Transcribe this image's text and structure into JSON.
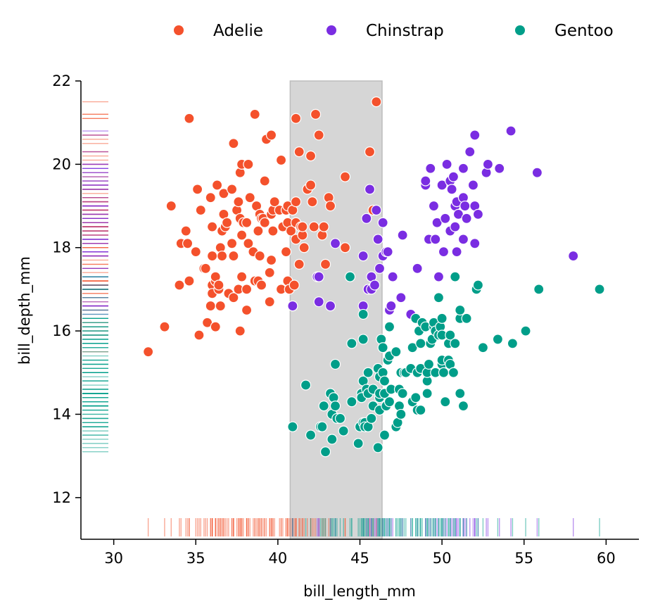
{
  "chart_data": {
    "type": "scatter",
    "title": "",
    "xlabel": "bill_length_mm",
    "ylabel": "bill_depth_mm",
    "xlim": [
      28,
      62
    ],
    "ylim": [
      11,
      22
    ],
    "x_ticks": [
      30,
      35,
      40,
      45,
      50,
      55,
      60
    ],
    "y_ticks": [
      12,
      14,
      16,
      18,
      20,
      22
    ],
    "grid": false,
    "legend_placement": "top, outside",
    "highlight_span": {
      "x": [
        40.75,
        46.35
      ],
      "color": "#d6d6d6"
    },
    "marginal_rugs": true,
    "series": [
      {
        "name": "Adelie",
        "color": "#f4512c",
        "points": [
          [
            32.1,
            15.5
          ],
          [
            33.1,
            16.1
          ],
          [
            33.5,
            19.0
          ],
          [
            34.0,
            17.1
          ],
          [
            34.1,
            18.1
          ],
          [
            34.4,
            18.4
          ],
          [
            34.5,
            18.1
          ],
          [
            34.6,
            21.1
          ],
          [
            34.6,
            17.2
          ],
          [
            35.0,
            17.9
          ],
          [
            35.1,
            19.4
          ],
          [
            35.2,
            15.9
          ],
          [
            35.3,
            18.9
          ],
          [
            35.5,
            17.5
          ],
          [
            35.6,
            17.5
          ],
          [
            35.7,
            16.2
          ],
          [
            35.9,
            16.6
          ],
          [
            35.9,
            19.2
          ],
          [
            36.0,
            17.8
          ],
          [
            36.0,
            18.5
          ],
          [
            36.0,
            17.1
          ],
          [
            36.0,
            16.9
          ],
          [
            36.2,
            16.1
          ],
          [
            36.2,
            17.2
          ],
          [
            36.2,
            17.3
          ],
          [
            36.3,
            19.5
          ],
          [
            36.4,
            17.0
          ],
          [
            36.4,
            17.1
          ],
          [
            36.5,
            16.6
          ],
          [
            36.5,
            18.0
          ],
          [
            36.6,
            17.8
          ],
          [
            36.6,
            18.4
          ],
          [
            36.7,
            19.3
          ],
          [
            36.7,
            18.8
          ],
          [
            36.8,
            18.5
          ],
          [
            36.9,
            18.6
          ],
          [
            37.0,
            16.9
          ],
          [
            37.2,
            18.1
          ],
          [
            37.2,
            19.4
          ],
          [
            37.3,
            17.8
          ],
          [
            37.3,
            20.5
          ],
          [
            37.3,
            16.8
          ],
          [
            37.5,
            18.9
          ],
          [
            37.6,
            19.1
          ],
          [
            37.6,
            17.0
          ],
          [
            37.7,
            18.7
          ],
          [
            37.7,
            19.8
          ],
          [
            37.7,
            16.0
          ],
          [
            37.8,
            17.3
          ],
          [
            37.8,
            18.3
          ],
          [
            37.8,
            20.0
          ],
          [
            37.9,
            18.6
          ],
          [
            38.1,
            18.6
          ],
          [
            38.1,
            16.5
          ],
          [
            38.1,
            17.0
          ],
          [
            38.2,
            18.1
          ],
          [
            38.2,
            20.0
          ],
          [
            38.3,
            19.2
          ],
          [
            38.5,
            17.9
          ],
          [
            38.6,
            17.2
          ],
          [
            38.6,
            21.2
          ],
          [
            38.7,
            19.0
          ],
          [
            38.8,
            17.2
          ],
          [
            38.8,
            18.4
          ],
          [
            38.9,
            17.8
          ],
          [
            38.9,
            18.8
          ],
          [
            39.0,
            17.1
          ],
          [
            39.0,
            18.7
          ],
          [
            39.1,
            18.7
          ],
          [
            39.2,
            19.6
          ],
          [
            39.2,
            18.6
          ],
          [
            39.3,
            20.6
          ],
          [
            39.5,
            17.4
          ],
          [
            39.5,
            16.7
          ],
          [
            39.6,
            17.7
          ],
          [
            39.6,
            18.8
          ],
          [
            39.6,
            20.7
          ],
          [
            39.7,
            18.4
          ],
          [
            39.7,
            18.9
          ],
          [
            39.8,
            19.1
          ],
          [
            40.1,
            18.9
          ],
          [
            40.2,
            17.0
          ],
          [
            40.2,
            20.1
          ],
          [
            40.3,
            18.5
          ],
          [
            40.5,
            17.9
          ],
          [
            40.5,
            18.9
          ],
          [
            40.6,
            17.2
          ],
          [
            40.6,
            18.6
          ],
          [
            40.6,
            19.0
          ],
          [
            40.7,
            17.0
          ],
          [
            40.8,
            18.4
          ],
          [
            40.9,
            16.6
          ],
          [
            40.9,
            18.9
          ],
          [
            41.0,
            17.1
          ],
          [
            41.1,
            18.2
          ],
          [
            41.1,
            19.1
          ],
          [
            41.1,
            18.6
          ],
          [
            41.1,
            21.1
          ],
          [
            41.3,
            20.3
          ],
          [
            41.3,
            17.6
          ],
          [
            41.4,
            18.5
          ],
          [
            41.5,
            18.3
          ],
          [
            41.5,
            18.5
          ],
          [
            41.6,
            18.0
          ],
          [
            41.8,
            19.4
          ],
          [
            42.0,
            20.2
          ],
          [
            42.0,
            19.5
          ],
          [
            42.1,
            19.1
          ],
          [
            42.2,
            18.5
          ],
          [
            42.3,
            21.2
          ],
          [
            42.5,
            20.7
          ],
          [
            42.7,
            18.3
          ],
          [
            42.8,
            18.5
          ],
          [
            42.9,
            17.6
          ],
          [
            43.1,
            19.2
          ],
          [
            43.2,
            19.0
          ],
          [
            44.1,
            19.7
          ],
          [
            44.1,
            18.0
          ],
          [
            45.6,
            20.3
          ],
          [
            45.8,
            18.9
          ],
          [
            46.0,
            21.5
          ]
        ]
      },
      {
        "name": "Chinstrap",
        "color": "#7a2de2",
        "points": [
          [
            40.9,
            16.6
          ],
          [
            42.4,
            17.3
          ],
          [
            42.5,
            17.3
          ],
          [
            42.5,
            16.7
          ],
          [
            43.2,
            16.6
          ],
          [
            43.5,
            18.1
          ],
          [
            45.2,
            16.6
          ],
          [
            45.2,
            17.8
          ],
          [
            45.4,
            18.7
          ],
          [
            45.5,
            17.0
          ],
          [
            45.6,
            19.4
          ],
          [
            45.7,
            17.0
          ],
          [
            45.7,
            17.3
          ],
          [
            45.9,
            17.1
          ],
          [
            46.0,
            18.9
          ],
          [
            46.1,
            18.2
          ],
          [
            46.2,
            17.5
          ],
          [
            46.4,
            17.8
          ],
          [
            46.4,
            18.6
          ],
          [
            46.6,
            17.9
          ],
          [
            46.7,
            17.9
          ],
          [
            46.8,
            16.5
          ],
          [
            46.9,
            16.6
          ],
          [
            47.0,
            17.3
          ],
          [
            47.5,
            16.8
          ],
          [
            47.6,
            18.3
          ],
          [
            48.1,
            16.4
          ],
          [
            48.5,
            17.5
          ],
          [
            49.0,
            19.5
          ],
          [
            49.0,
            19.6
          ],
          [
            49.2,
            18.2
          ],
          [
            49.3,
            19.9
          ],
          [
            49.5,
            19.0
          ],
          [
            49.6,
            18.2
          ],
          [
            49.7,
            18.6
          ],
          [
            49.8,
            17.3
          ],
          [
            50.0,
            19.5
          ],
          [
            50.1,
            17.9
          ],
          [
            50.2,
            18.7
          ],
          [
            50.3,
            20.0
          ],
          [
            50.5,
            18.4
          ],
          [
            50.5,
            19.6
          ],
          [
            50.6,
            19.4
          ],
          [
            50.7,
            19.7
          ],
          [
            50.8,
            18.5
          ],
          [
            50.8,
            19.0
          ],
          [
            50.9,
            17.9
          ],
          [
            50.9,
            19.1
          ],
          [
            51.0,
            18.8
          ],
          [
            51.3,
            18.2
          ],
          [
            51.3,
            19.2
          ],
          [
            51.3,
            19.9
          ],
          [
            51.4,
            19.0
          ],
          [
            51.5,
            18.7
          ],
          [
            51.7,
            20.3
          ],
          [
            51.9,
            19.5
          ],
          [
            52.0,
            18.1
          ],
          [
            52.0,
            19.0
          ],
          [
            52.0,
            20.7
          ],
          [
            52.2,
            18.8
          ],
          [
            52.7,
            19.8
          ],
          [
            52.8,
            20.0
          ],
          [
            53.5,
            19.9
          ],
          [
            54.2,
            20.8
          ],
          [
            55.8,
            19.8
          ],
          [
            58.0,
            17.8
          ]
        ]
      },
      {
        "name": "Gentoo",
        "color": "#009e89",
        "points": [
          [
            40.9,
            13.7
          ],
          [
            41.7,
            14.7
          ],
          [
            42.0,
            13.5
          ],
          [
            42.6,
            13.7
          ],
          [
            42.7,
            13.7
          ],
          [
            42.8,
            14.2
          ],
          [
            42.9,
            13.1
          ],
          [
            43.2,
            14.5
          ],
          [
            43.3,
            13.4
          ],
          [
            43.3,
            14.0
          ],
          [
            43.4,
            14.4
          ],
          [
            43.5,
            14.2
          ],
          [
            43.5,
            15.2
          ],
          [
            43.6,
            13.9
          ],
          [
            43.8,
            13.9
          ],
          [
            44.0,
            13.6
          ],
          [
            44.4,
            17.3
          ],
          [
            44.5,
            14.3
          ],
          [
            44.5,
            15.7
          ],
          [
            44.9,
            13.3
          ],
          [
            45.0,
            13.7
          ],
          [
            45.1,
            14.5
          ],
          [
            45.1,
            14.4
          ],
          [
            45.2,
            13.8
          ],
          [
            45.2,
            14.8
          ],
          [
            45.2,
            15.8
          ],
          [
            45.2,
            16.4
          ],
          [
            45.3,
            13.8
          ],
          [
            45.3,
            13.7
          ],
          [
            45.4,
            14.6
          ],
          [
            45.5,
            13.7
          ],
          [
            45.5,
            14.5
          ],
          [
            45.5,
            15.0
          ],
          [
            45.7,
            13.9
          ],
          [
            45.8,
            14.2
          ],
          [
            45.8,
            14.6
          ],
          [
            46.1,
            13.2
          ],
          [
            46.1,
            15.1
          ],
          [
            46.2,
            14.1
          ],
          [
            46.2,
            14.4
          ],
          [
            46.2,
            14.5
          ],
          [
            46.2,
            14.9
          ],
          [
            46.3,
            15.8
          ],
          [
            46.4,
            15.0
          ],
          [
            46.4,
            15.6
          ],
          [
            46.5,
            13.5
          ],
          [
            46.5,
            14.5
          ],
          [
            46.5,
            14.8
          ],
          [
            46.6,
            14.2
          ],
          [
            46.7,
            15.3
          ],
          [
            46.8,
            14.3
          ],
          [
            46.8,
            15.4
          ],
          [
            46.8,
            16.1
          ],
          [
            46.9,
            14.6
          ],
          [
            47.2,
            13.7
          ],
          [
            47.2,
            15.5
          ],
          [
            47.3,
            13.8
          ],
          [
            47.4,
            14.6
          ],
          [
            47.4,
            14.2
          ],
          [
            47.5,
            14.0
          ],
          [
            47.5,
            15.0
          ],
          [
            47.6,
            14.5
          ],
          [
            47.7,
            15.0
          ],
          [
            47.8,
            15.0
          ],
          [
            48.1,
            15.1
          ],
          [
            48.2,
            14.3
          ],
          [
            48.2,
            15.6
          ],
          [
            48.4,
            14.4
          ],
          [
            48.4,
            16.3
          ],
          [
            48.5,
            14.1
          ],
          [
            48.5,
            15.0
          ],
          [
            48.6,
            16.0
          ],
          [
            48.7,
            14.1
          ],
          [
            48.7,
            15.1
          ],
          [
            48.7,
            15.7
          ],
          [
            48.8,
            16.2
          ],
          [
            49.0,
            16.1
          ],
          [
            49.1,
            14.5
          ],
          [
            49.1,
            14.8
          ],
          [
            49.1,
            15.0
          ],
          [
            49.2,
            15.2
          ],
          [
            49.3,
            15.7
          ],
          [
            49.4,
            15.8
          ],
          [
            49.5,
            16.1
          ],
          [
            49.5,
            16.2
          ],
          [
            49.6,
            15.0
          ],
          [
            49.6,
            16.0
          ],
          [
            49.8,
            15.9
          ],
          [
            49.8,
            16.8
          ],
          [
            49.9,
            16.1
          ],
          [
            50.0,
            15.2
          ],
          [
            50.0,
            15.3
          ],
          [
            50.0,
            15.9
          ],
          [
            50.0,
            16.3
          ],
          [
            50.1,
            15.0
          ],
          [
            50.2,
            14.3
          ],
          [
            50.4,
            15.3
          ],
          [
            50.4,
            15.7
          ],
          [
            50.5,
            15.2
          ],
          [
            50.5,
            15.9
          ],
          [
            50.7,
            15.0
          ],
          [
            50.8,
            15.7
          ],
          [
            50.8,
            17.3
          ],
          [
            51.1,
            14.5
          ],
          [
            51.1,
            16.3
          ],
          [
            51.1,
            16.5
          ],
          [
            51.3,
            14.2
          ],
          [
            51.5,
            16.3
          ],
          [
            52.1,
            17.0
          ],
          [
            52.2,
            17.1
          ],
          [
            52.5,
            15.6
          ],
          [
            53.4,
            15.8
          ],
          [
            54.3,
            15.7
          ],
          [
            55.1,
            16.0
          ],
          [
            55.9,
            17.0
          ],
          [
            59.6,
            17.0
          ]
        ]
      }
    ]
  }
}
